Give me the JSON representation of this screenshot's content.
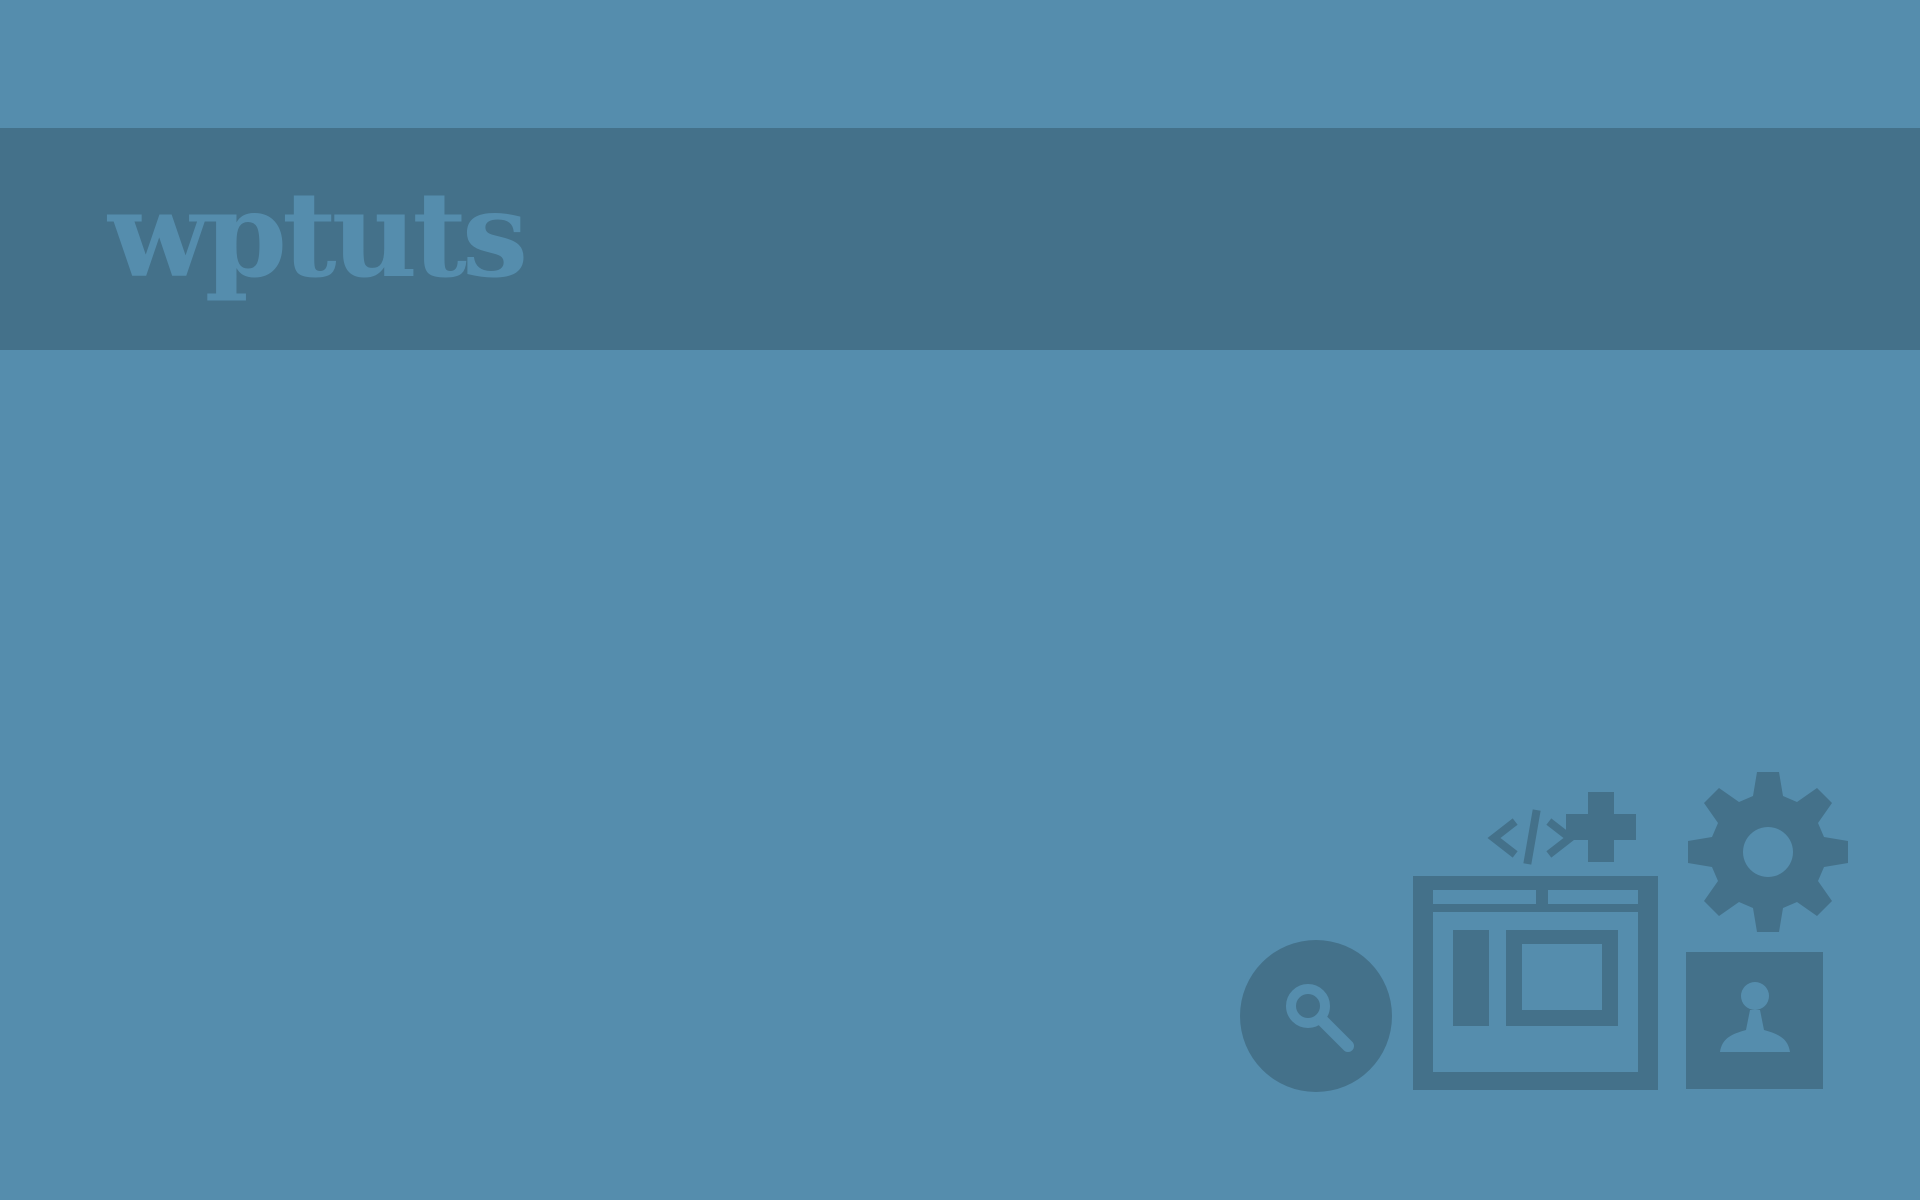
{
  "brand": {
    "name": "wptuts"
  },
  "colors": {
    "background": "#558dad",
    "banner": "#44718a",
    "logo_text": "#558dad",
    "icon_fill": "#44718a"
  },
  "icons": [
    "search-icon",
    "code-icon",
    "plus-icon",
    "browser-layout-icon",
    "gear-icon",
    "user-icon"
  ]
}
